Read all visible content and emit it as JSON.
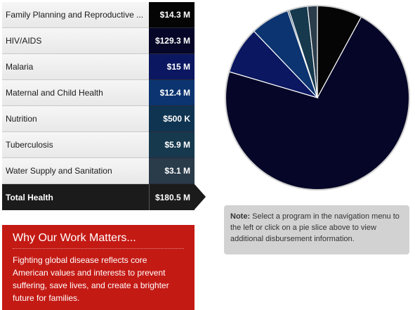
{
  "nav": {
    "items": [
      {
        "label": "Family Planning and Reproductive ...",
        "value": "$14.3 M",
        "color": "#050505"
      },
      {
        "label": "HIV/AIDS",
        "value": "$129.3 M",
        "color": "#060628"
      },
      {
        "label": "Malaria",
        "value": "$15 M",
        "color": "#0b1760"
      },
      {
        "label": "Maternal and Child Health",
        "value": "$12.4 M",
        "color": "#0b3470"
      },
      {
        "label": "Nutrition",
        "value": "$500 K",
        "color": "#0f3451"
      },
      {
        "label": "Tuberculosis",
        "value": "$5.9 M",
        "color": "#16394e"
      },
      {
        "label": "Water Supply and Sanitation",
        "value": "$3.1 M",
        "color": "#2a3b4a"
      }
    ],
    "total": {
      "label": "Total Health",
      "value": "$180.5 M",
      "color": "#1b1b1b"
    }
  },
  "note": {
    "prefix": "Note:",
    "text": " Select a program in the navigation menu to the left or click on a pie slice above to view additional disbursement information."
  },
  "why": {
    "title": "Why Our Work Matters...",
    "body": "Fighting global disease reflects core American values and interests to prevent suffering, save lives, and create a brighter future for families."
  },
  "chart_data": {
    "type": "pie",
    "units": "$M",
    "categories": [
      "Family Planning and Reproductive ...",
      "HIV/AIDS",
      "Malaria",
      "Maternal and Child Health",
      "Nutrition",
      "Tuberculosis",
      "Water Supply and Sanitation"
    ],
    "values": [
      14.3,
      129.3,
      15,
      12.4,
      0.5,
      5.9,
      3.1
    ],
    "colors": [
      "#050505",
      "#060628",
      "#0b1760",
      "#0b3470",
      "#0f3451",
      "#16394e",
      "#2a3b4a"
    ],
    "start": "12 o'clock",
    "direction": "clockwise"
  }
}
